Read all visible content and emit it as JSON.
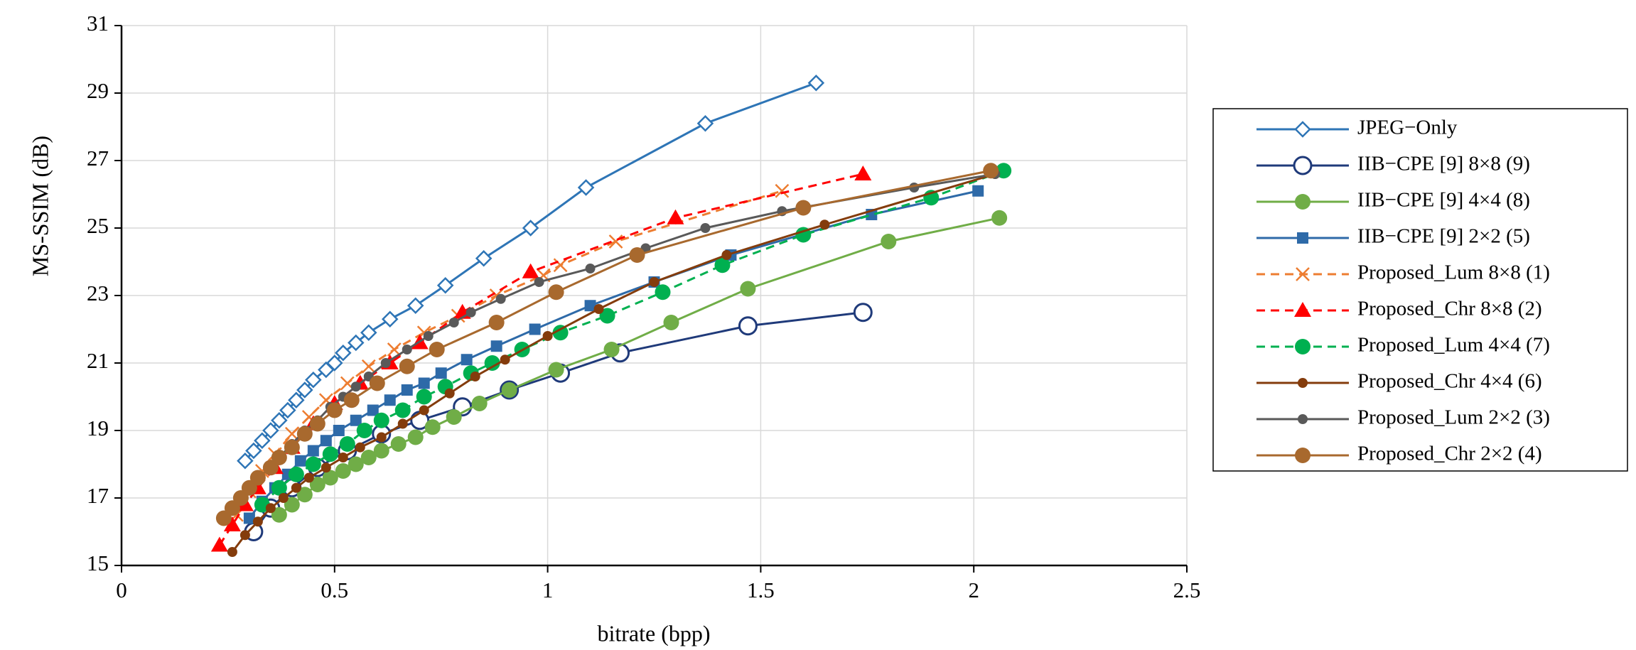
{
  "chart_data": {
    "type": "line",
    "x_label": "bitrate (bpp)",
    "y_label": "MS-SSIM (dB)",
    "xlim": [
      0,
      2.5
    ],
    "xticks": [
      0,
      0.5,
      1,
      1.5,
      2,
      2.5
    ],
    "ylim": [
      15,
      31
    ],
    "yticks": [
      15,
      17,
      19,
      21,
      23,
      25,
      27,
      29,
      31
    ],
    "grid": true,
    "legend": "right",
    "series": [
      {
        "name": "JPEG−Only",
        "color": "#2e75b6",
        "marker": "diamond-open",
        "linestyle": "solid",
        "x": [
          0.29,
          0.31,
          0.33,
          0.35,
          0.37,
          0.39,
          0.41,
          0.43,
          0.45,
          0.48,
          0.5,
          0.52,
          0.55,
          0.58,
          0.63,
          0.69,
          0.76,
          0.85,
          0.96,
          1.09,
          1.37,
          1.63
        ],
        "values": [
          18.1,
          18.4,
          18.7,
          19.0,
          19.3,
          19.6,
          19.9,
          20.2,
          20.5,
          20.8,
          21.0,
          21.3,
          21.6,
          21.9,
          22.3,
          22.7,
          23.3,
          24.1,
          25.0,
          26.2,
          28.1,
          29.3
        ]
      },
      {
        "name": "IIB−CPE [9] 8×8 (9)",
        "color": "#1f3a7a",
        "marker": "circle-open",
        "linestyle": "solid",
        "x": [
          0.31,
          0.35,
          0.4,
          0.46,
          0.53,
          0.61,
          0.7,
          0.8,
          0.91,
          1.03,
          1.17,
          1.47,
          1.74
        ],
        "values": [
          16.0,
          16.7,
          17.3,
          17.9,
          18.4,
          18.9,
          19.3,
          19.7,
          20.2,
          20.7,
          21.3,
          22.1,
          22.5
        ]
      },
      {
        "name": "IIB−CPE [9] 4×4 (8)",
        "color": "#70ad47",
        "marker": "circle",
        "linestyle": "solid",
        "x": [
          0.37,
          0.4,
          0.43,
          0.46,
          0.49,
          0.52,
          0.55,
          0.58,
          0.61,
          0.65,
          0.69,
          0.73,
          0.78,
          0.84,
          0.91,
          1.02,
          1.15,
          1.29,
          1.47,
          1.8,
          2.06
        ],
        "values": [
          16.5,
          16.8,
          17.1,
          17.4,
          17.6,
          17.8,
          18.0,
          18.2,
          18.4,
          18.6,
          18.8,
          19.1,
          19.4,
          19.8,
          20.2,
          20.8,
          21.4,
          22.2,
          23.2,
          24.6,
          25.3
        ]
      },
      {
        "name": "IIB−CPE [9] 2×2 (5)",
        "color": "#2e6aa8",
        "marker": "square",
        "linestyle": "solid",
        "x": [
          0.3,
          0.33,
          0.36,
          0.39,
          0.42,
          0.45,
          0.48,
          0.51,
          0.55,
          0.59,
          0.63,
          0.67,
          0.71,
          0.75,
          0.81,
          0.88,
          0.97,
          1.1,
          1.25,
          1.43,
          1.76,
          2.01
        ],
        "values": [
          16.4,
          16.9,
          17.3,
          17.7,
          18.1,
          18.4,
          18.7,
          19.0,
          19.3,
          19.6,
          19.9,
          20.2,
          20.4,
          20.7,
          21.1,
          21.5,
          22.0,
          22.7,
          23.4,
          24.2,
          25.4,
          26.1
        ]
      },
      {
        "name": "Proposed_Lum 8×8 (1)",
        "color": "#ed7d31",
        "marker": "x",
        "linestyle": "dashed",
        "x": [
          0.27,
          0.3,
          0.33,
          0.36,
          0.4,
          0.44,
          0.48,
          0.53,
          0.58,
          0.64,
          0.71,
          0.79,
          0.88,
          0.99,
          1.03,
          1.16,
          1.55
        ],
        "values": [
          16.5,
          17.2,
          17.8,
          18.3,
          18.9,
          19.4,
          19.9,
          20.4,
          20.9,
          21.4,
          21.9,
          22.4,
          23.0,
          23.6,
          23.9,
          24.6,
          26.1
        ]
      },
      {
        "name": "Proposed_Chr 8×8 (2)",
        "color": "#ff0000",
        "marker": "triangle",
        "linestyle": "dashed",
        "x": [
          0.23,
          0.26,
          0.29,
          0.32,
          0.36,
          0.4,
          0.45,
          0.5,
          0.56,
          0.63,
          0.7,
          0.8,
          0.96,
          1.3,
          1.74
        ],
        "values": [
          15.6,
          16.2,
          16.8,
          17.3,
          17.9,
          18.5,
          19.2,
          19.8,
          20.4,
          21.0,
          21.6,
          22.5,
          23.7,
          25.3,
          26.6
        ]
      },
      {
        "name": "Proposed_Lum 4×4 (7)",
        "color": "#00b050",
        "marker": "circle",
        "linestyle": "dashed",
        "x": [
          0.33,
          0.37,
          0.41,
          0.45,
          0.49,
          0.53,
          0.57,
          0.61,
          0.66,
          0.71,
          0.76,
          0.82,
          0.87,
          0.94,
          1.03,
          1.14,
          1.27,
          1.41,
          1.6,
          1.9,
          2.07
        ],
        "values": [
          16.8,
          17.3,
          17.7,
          18.0,
          18.3,
          18.6,
          19.0,
          19.3,
          19.6,
          20.0,
          20.3,
          20.7,
          21.0,
          21.4,
          21.9,
          22.4,
          23.1,
          23.9,
          24.8,
          25.9,
          26.7
        ]
      },
      {
        "name": "Proposed_Chr 4×4 (6)",
        "color": "#843c0c",
        "marker": "dot",
        "linestyle": "solid",
        "x": [
          0.26,
          0.29,
          0.32,
          0.35,
          0.38,
          0.41,
          0.44,
          0.48,
          0.52,
          0.56,
          0.61,
          0.66,
          0.71,
          0.77,
          0.83,
          0.9,
          1.0,
          1.12,
          1.25,
          1.42,
          1.65,
          2.05
        ],
        "values": [
          15.4,
          15.9,
          16.3,
          16.7,
          17.0,
          17.3,
          17.6,
          17.9,
          18.2,
          18.5,
          18.8,
          19.2,
          19.6,
          20.1,
          20.6,
          21.1,
          21.8,
          22.6,
          23.4,
          24.2,
          25.1,
          26.6
        ]
      },
      {
        "name": "Proposed_Lum 2×2 (3)",
        "color": "#595959",
        "marker": "dot",
        "linestyle": "solid",
        "x": [
          0.37,
          0.4,
          0.43,
          0.46,
          0.49,
          0.52,
          0.55,
          0.58,
          0.62,
          0.67,
          0.72,
          0.78,
          0.82,
          0.89,
          0.98,
          1.1,
          1.23,
          1.37,
          1.55,
          1.86,
          2.05
        ],
        "values": [
          18.2,
          18.6,
          19.0,
          19.3,
          19.7,
          20.0,
          20.3,
          20.6,
          21.0,
          21.4,
          21.8,
          22.2,
          22.5,
          22.9,
          23.4,
          23.8,
          24.4,
          25.0,
          25.5,
          26.2,
          26.6
        ]
      },
      {
        "name": "Proposed_Chr 2×2 (4)",
        "color": "#a8692e",
        "marker": "circle",
        "linestyle": "solid",
        "x": [
          0.24,
          0.26,
          0.28,
          0.3,
          0.32,
          0.35,
          0.37,
          0.4,
          0.43,
          0.46,
          0.5,
          0.54,
          0.6,
          0.67,
          0.74,
          0.88,
          1.02,
          1.21,
          1.6,
          2.04
        ],
        "values": [
          16.4,
          16.7,
          17.0,
          17.3,
          17.6,
          17.9,
          18.2,
          18.5,
          18.9,
          19.2,
          19.6,
          19.9,
          20.4,
          20.9,
          21.4,
          22.2,
          23.1,
          24.2,
          25.6,
          26.7
        ]
      }
    ]
  }
}
